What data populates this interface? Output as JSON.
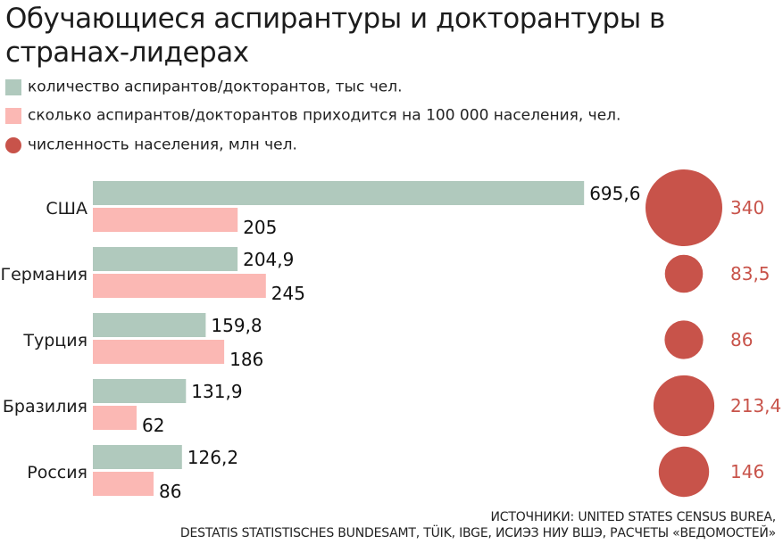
{
  "chart_data": {
    "type": "bar",
    "title": "Обучающиеся аспирантуры и докторантуры в странах-лидерах",
    "categories": [
      "США",
      "Германия",
      "Турция",
      "Бразилия",
      "Россия"
    ],
    "series": [
      {
        "name": "количество аспирантов/докторантов, тыс чел.",
        "color": "#b0c9bd",
        "values": [
          695.6,
          204.9,
          159.8,
          131.9,
          126.2
        ],
        "labels": [
          "695,6",
          "204,9",
          "159,8",
          "131,9",
          "126,2"
        ]
      },
      {
        "name": "сколько аспирантов/докторантов приходится на 100 000 населения, чел.",
        "color": "#fbb8b4",
        "values": [
          205,
          245,
          186,
          62,
          86
        ],
        "labels": [
          "205",
          "245",
          "186",
          "62",
          "86"
        ]
      },
      {
        "name": "численность населения, млн чел.",
        "color": "#c8534a",
        "marker": "circle",
        "values": [
          340,
          83.5,
          86,
          213.4,
          146
        ],
        "labels": [
          "340",
          "83,5",
          "86",
          "213,4",
          "146"
        ]
      }
    ],
    "legend": "top-left",
    "grid": false
  },
  "legend_items": [
    {
      "label": "количество аспирантов/докторантов, тыс чел.",
      "shape": "square",
      "color": "#b0c9bd"
    },
    {
      "label": "сколько аспирантов/докторантов приходится на 100 000 населения, чел.",
      "shape": "square",
      "color": "#fbb8b4"
    },
    {
      "label": "численность населения, млн чел.",
      "shape": "circle",
      "color": "#c8534a"
    }
  ],
  "source": {
    "line1": "ИСТОЧНИКИ: UNITED STATES CENSUS BUREA,",
    "line2": "DESTATIS STATISTISCHES BUNDESAMT, TÜIK, IBGE, ИСИЭЗ НИУ ВШЭ, РАСЧЕТЫ «ВЕДОМОСТЕЙ»"
  }
}
